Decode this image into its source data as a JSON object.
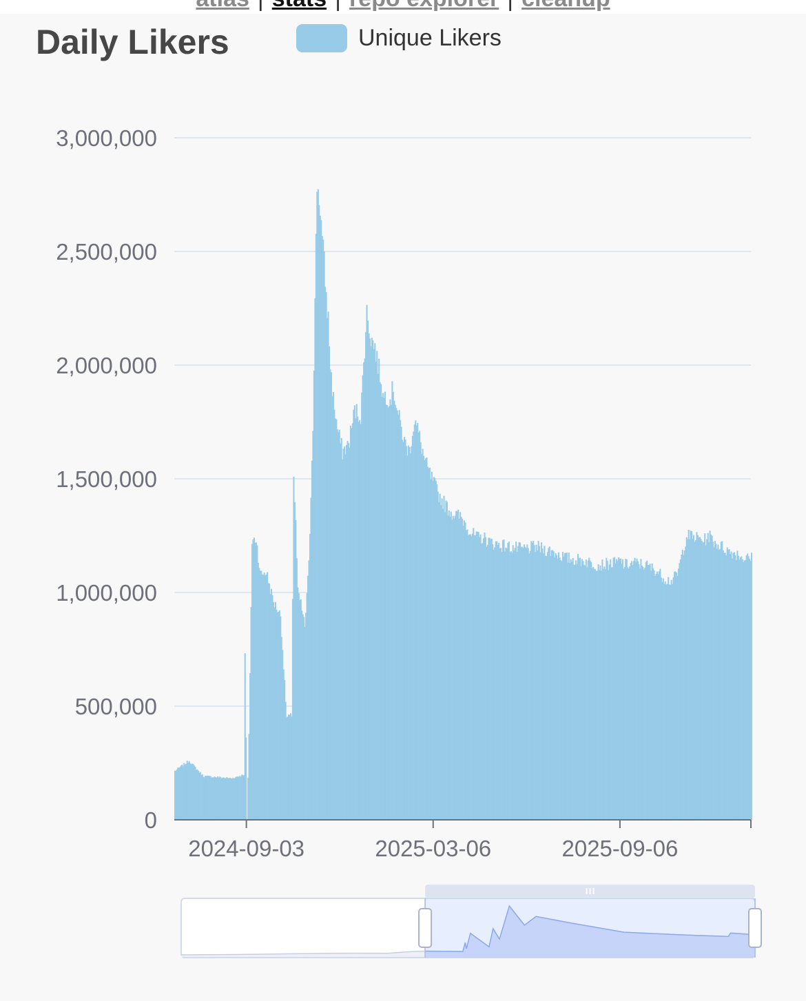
{
  "nav": {
    "links": [
      {
        "label": "atlas",
        "current": false
      },
      {
        "label": "stats",
        "current": true
      },
      {
        "label": "repo explorer",
        "current": false
      },
      {
        "label": "cleanup",
        "current": false
      }
    ],
    "separator": "|"
  },
  "colors": {
    "bar": "#97cbe7",
    "grid": "#e0e6f1",
    "axis": "#6e7079",
    "zoom_fill": "#d5def7",
    "zoom_line": "#8fa8e8",
    "background": "#f8f8f9"
  },
  "chart_data": {
    "type": "bar",
    "title": "Daily Likers",
    "legend": {
      "entries": [
        "Unique Likers"
      ],
      "position": "top"
    },
    "xlabel": "",
    "ylabel": "",
    "ylim": [
      0,
      3000000
    ],
    "yticks": [
      0,
      500000,
      1000000,
      1500000,
      2000000,
      2500000,
      3000000
    ],
    "ytick_labels": [
      "0",
      "500,000",
      "1,000,000",
      "1,500,000",
      "2,000,000",
      "2,500,000",
      "3,000,000"
    ],
    "xlim": [
      "2024-06-24",
      "2026-01-13"
    ],
    "xticks": [
      "2024-09-03",
      "2025-03-06",
      "2025-09-06"
    ],
    "grid": true,
    "series": [
      {
        "name": "Unique Likers",
        "x": [
          "2024-06-24",
          "2024-07-08",
          "2024-07-15",
          "2024-07-22",
          "2024-08-05",
          "2024-08-19",
          "2024-08-28",
          "2024-08-31",
          "2024-09-01",
          "2024-09-03",
          "2024-09-05",
          "2024-09-08",
          "2024-09-12",
          "2024-09-16",
          "2024-09-22",
          "2024-09-29",
          "2024-10-06",
          "2024-10-12",
          "2024-10-17",
          "2024-10-19",
          "2024-10-21",
          "2024-10-23",
          "2024-10-26",
          "2024-10-30",
          "2024-11-03",
          "2024-11-07",
          "2024-11-11",
          "2024-11-14",
          "2024-11-16",
          "2024-11-18",
          "2024-11-20",
          "2024-11-22",
          "2024-11-24",
          "2024-11-27",
          "2024-12-01",
          "2024-12-06",
          "2024-12-12",
          "2024-12-18",
          "2024-12-24",
          "2024-12-30",
          "2025-01-03",
          "2025-01-07",
          "2025-01-10",
          "2025-01-13",
          "2025-01-15",
          "2025-01-18",
          "2025-01-22",
          "2025-01-25",
          "2025-01-30",
          "2025-02-05",
          "2025-02-10",
          "2025-02-15",
          "2025-02-19",
          "2025-02-25",
          "2025-03-02",
          "2025-03-06",
          "2025-03-12",
          "2025-03-18",
          "2025-03-24",
          "2025-03-28",
          "2025-04-02",
          "2025-04-07",
          "2025-04-12",
          "2025-04-18",
          "2025-04-24",
          "2025-05-01",
          "2025-05-10",
          "2025-05-20",
          "2025-06-01",
          "2025-06-15",
          "2025-07-01",
          "2025-07-15",
          "2025-08-01",
          "2025-08-15",
          "2025-09-01",
          "2025-09-06",
          "2025-09-10",
          "2025-09-20",
          "2025-10-01",
          "2025-10-10",
          "2025-10-20",
          "2025-10-26",
          "2025-11-01",
          "2025-11-10",
          "2025-11-20",
          "2025-11-28",
          "2025-12-02",
          "2025-12-08",
          "2025-12-15",
          "2025-12-22",
          "2025-12-30",
          "2026-01-06",
          "2026-01-13"
        ],
        "values": [
          215000,
          260000,
          225000,
          192000,
          188000,
          182000,
          195000,
          200000,
          720000,
          0,
          370000,
          1220000,
          1240000,
          1080000,
          1090000,
          960000,
          900000,
          450000,
          460000,
          1510000,
          1300000,
          1000000,
          950000,
          850000,
          1120000,
          1750000,
          2800000,
          2700000,
          2550000,
          2450000,
          2300000,
          2200000,
          2000000,
          1850000,
          1720000,
          1620000,
          1650000,
          1800000,
          1780000,
          2230000,
          2120000,
          2080000,
          2000000,
          1940000,
          1860000,
          1870000,
          1850000,
          1900000,
          1780000,
          1660000,
          1620000,
          1760000,
          1700000,
          1580000,
          1520000,
          1480000,
          1420000,
          1380000,
          1350000,
          1340000,
          1330000,
          1300000,
          1260000,
          1240000,
          1240000,
          1220000,
          1210000,
          1200000,
          1190000,
          1200000,
          1180000,
          1150000,
          1140000,
          1120000,
          1130000,
          1140000,
          1120000,
          1130000,
          1120000,
          1100000,
          1060000,
          1050000,
          1080000,
          1250000,
          1240000,
          1230000,
          1250000,
          1220000,
          1200000,
          1180000,
          1170000,
          1150000,
          1150000
        ]
      }
    ],
    "zoom": {
      "start_date": "2024-06-24",
      "end_date": "2026-01-13",
      "overview_x": [
        "2023-05-01",
        "2023-08-01",
        "2023-11-01",
        "2024-01-15",
        "2024-03-01",
        "2024-04-20",
        "2024-06-01",
        "2024-06-24",
        "2024-08-28",
        "2024-09-01",
        "2024-09-03",
        "2024-09-10",
        "2024-10-12",
        "2024-10-19",
        "2024-10-30",
        "2024-11-16",
        "2024-12-12",
        "2025-01-01",
        "2025-03-06",
        "2025-06-01",
        "2025-09-06",
        "2025-11-28",
        "2025-12-02",
        "2026-01-13"
      ],
      "overview_values": [
        0,
        20000,
        60000,
        90000,
        95000,
        85000,
        190000,
        215000,
        195000,
        700000,
        350000,
        1230000,
        460000,
        1500000,
        900000,
        2800000,
        1700000,
        2200000,
        1800000,
        1300000,
        1150000,
        1050000,
        1250000,
        1150000
      ]
    }
  }
}
